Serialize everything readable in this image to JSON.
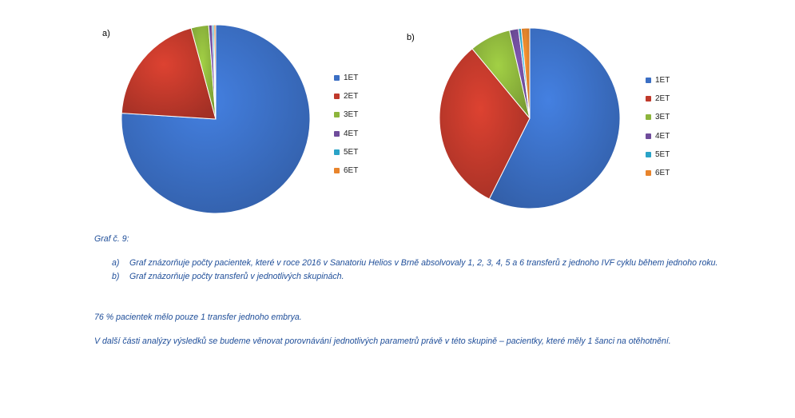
{
  "chart_data": [
    {
      "type": "pie",
      "panel": "a)",
      "categories": [
        "1ET",
        "2ET",
        "3ET",
        "4ET",
        "5ET",
        "6ET"
      ],
      "values": [
        76,
        19.8,
        3,
        0.6,
        0.3,
        0.3
      ],
      "colors": [
        "#3b6fc4",
        "#c0392b",
        "#8db53c",
        "#6f4c9b",
        "#2aa3c7",
        "#e8842c"
      ],
      "legend": "right"
    },
    {
      "type": "pie",
      "panel": "b)",
      "categories": [
        "1ET",
        "2ET",
        "3ET",
        "4ET",
        "5ET",
        "6ET"
      ],
      "values": [
        57.4,
        31.6,
        7.4,
        1.6,
        0.5,
        1.5
      ],
      "colors": [
        "#3b6fc4",
        "#c0392b",
        "#8db53c",
        "#6f4c9b",
        "#2aa3c7",
        "#e8842c"
      ],
      "legend": "right"
    }
  ],
  "caption": {
    "title": "Graf č. 9:",
    "items": [
      {
        "mark": "a)",
        "text": "Graf znázorňuje počty pacientek, které v roce 2016 v Sanatoriu Helios v Brně absolvovaly 1, 2, 3, 4, 5 a 6 transferů z jednoho IVF cyklu během jednoho roku."
      },
      {
        "mark": "b)",
        "text": "Graf znázorňuje počty transferů v jednotlivých skupinách."
      }
    ],
    "para1": "76 % pacientek mělo pouze 1 transfer jednoho embrya.",
    "para2": "V další části analýzy výsledků se budeme věnovat porovnávání jednotlivých parametrů právě v této skupině – pacientky, které měly 1 šanci na otěhotnění."
  }
}
